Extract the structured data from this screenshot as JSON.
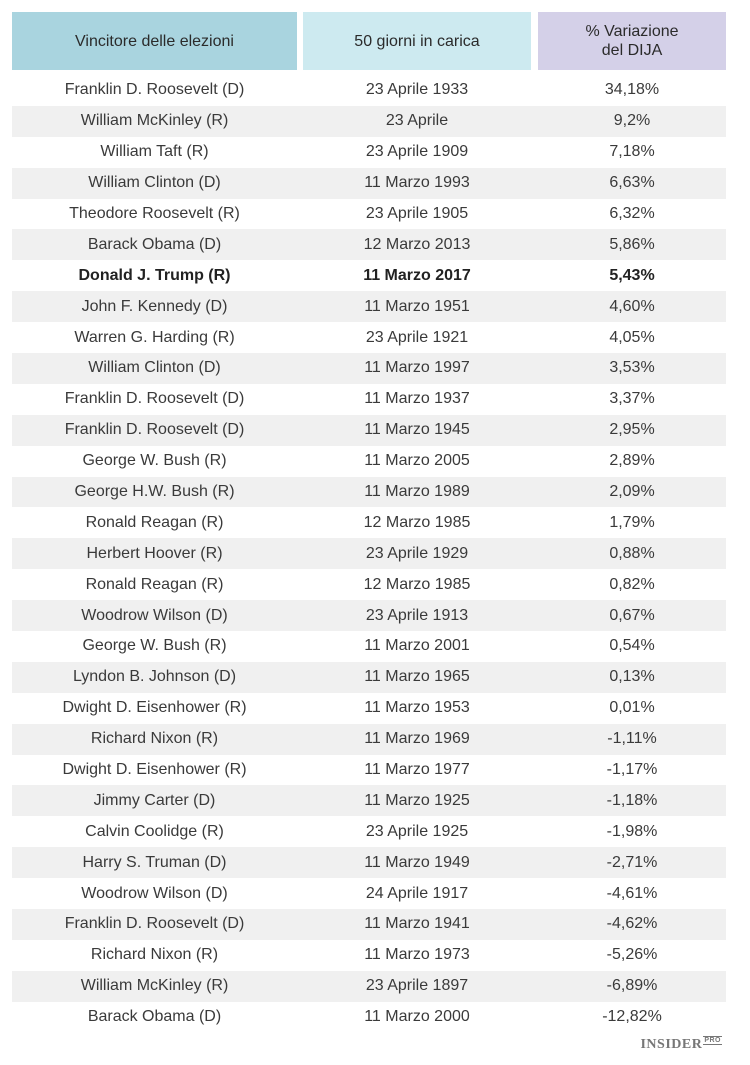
{
  "chart_data": {
    "type": "table",
    "columns": [
      "Vincitore delle elezioni",
      "50 giorni in carica",
      "% Variazione\ndel DIJA"
    ],
    "highlight_row": 6,
    "rows": [
      [
        "Franklin D. Roosevelt (D)",
        "23 Aprile 1933",
        "34,18%"
      ],
      [
        "William McKinley (R)",
        "23 Aprile",
        "9,2%"
      ],
      [
        "William Taft (R)",
        "23 Aprile  1909",
        "7,18%"
      ],
      [
        "William Clinton (D)",
        "11 Marzo 1993",
        "6,63%"
      ],
      [
        "Theodore Roosevelt (R)",
        "23 Aprile  1905",
        "6,32%"
      ],
      [
        "Barack Obama (D)",
        "12 Marzo 2013",
        "5,86%"
      ],
      [
        "Donald J. Trump (R)",
        "11 Marzo 2017",
        "5,43%"
      ],
      [
        "John F. Kennedy (D)",
        "11 Marzo 1951",
        "4,60%"
      ],
      [
        "Warren G. Harding (R)",
        "23 Aprile  1921",
        "4,05%"
      ],
      [
        "William Clinton (D)",
        "11 Marzo 1997",
        "3,53%"
      ],
      [
        "Franklin D. Roosevelt (D)",
        "11 Marzo 1937",
        "3,37%"
      ],
      [
        "Franklin D. Roosevelt (D)",
        "11 Marzo 1945",
        "2,95%"
      ],
      [
        "George W. Bush (R)",
        "11 Marzo 2005",
        "2,89%"
      ],
      [
        "George H.W. Bush (R)",
        "11 Marzo 1989",
        "2,09%"
      ],
      [
        "Ronald Reagan (R)",
        "12 Marzo 1985",
        "1,79%"
      ],
      [
        "Herbert Hoover (R)",
        "23 Aprile 1929",
        "0,88%"
      ],
      [
        "Ronald Reagan (R)",
        "12 Marzo 1985",
        "0,82%"
      ],
      [
        "Woodrow Wilson (D)",
        "23 Aprile 1913",
        "0,67%"
      ],
      [
        "George W. Bush (R)",
        "11 Marzo 2001",
        "0,54%"
      ],
      [
        "Lyndon B. Johnson (D)",
        "11 Marzo 1965",
        "0,13%"
      ],
      [
        "Dwight D. Eisenhower (R)",
        "11 Marzo 1953",
        "0,01%"
      ],
      [
        "Richard Nixon (R)",
        "11 Marzo 1969",
        "-1,11%"
      ],
      [
        "Dwight D. Eisenhower (R)",
        "11 Marzo 1977",
        "-1,17%"
      ],
      [
        "Jimmy Carter (D)",
        "11 Marzo 1925",
        "-1,18%"
      ],
      [
        "Calvin Coolidge (R)",
        "23 Aprile 1925",
        "-1,98%"
      ],
      [
        "Harry S. Truman (D)",
        "11 Marzo 1949",
        "-2,71%"
      ],
      [
        "Woodrow Wilson (D)",
        "24 Aprile 1917",
        "-4,61%"
      ],
      [
        "Franklin D. Roosevelt (D)",
        "11 Marzo 1941",
        "-4,62%"
      ],
      [
        "Richard Nixon (R)",
        "11 Marzo 1973",
        "-5,26%"
      ],
      [
        "William McKinley (R)",
        "23 Aprile 1897",
        "-6,89%"
      ],
      [
        "Barack Obama (D)",
        "11 Marzo 2000",
        "-12,82%"
      ]
    ]
  },
  "colors": {
    "header_col1": "#a9d4df",
    "header_col2": "#cdeaf0",
    "header_col3": "#d4d0e8",
    "row_shade": "#f0f0f0"
  },
  "brand": {
    "name": "INSIDER",
    "suffix": "PRO"
  }
}
